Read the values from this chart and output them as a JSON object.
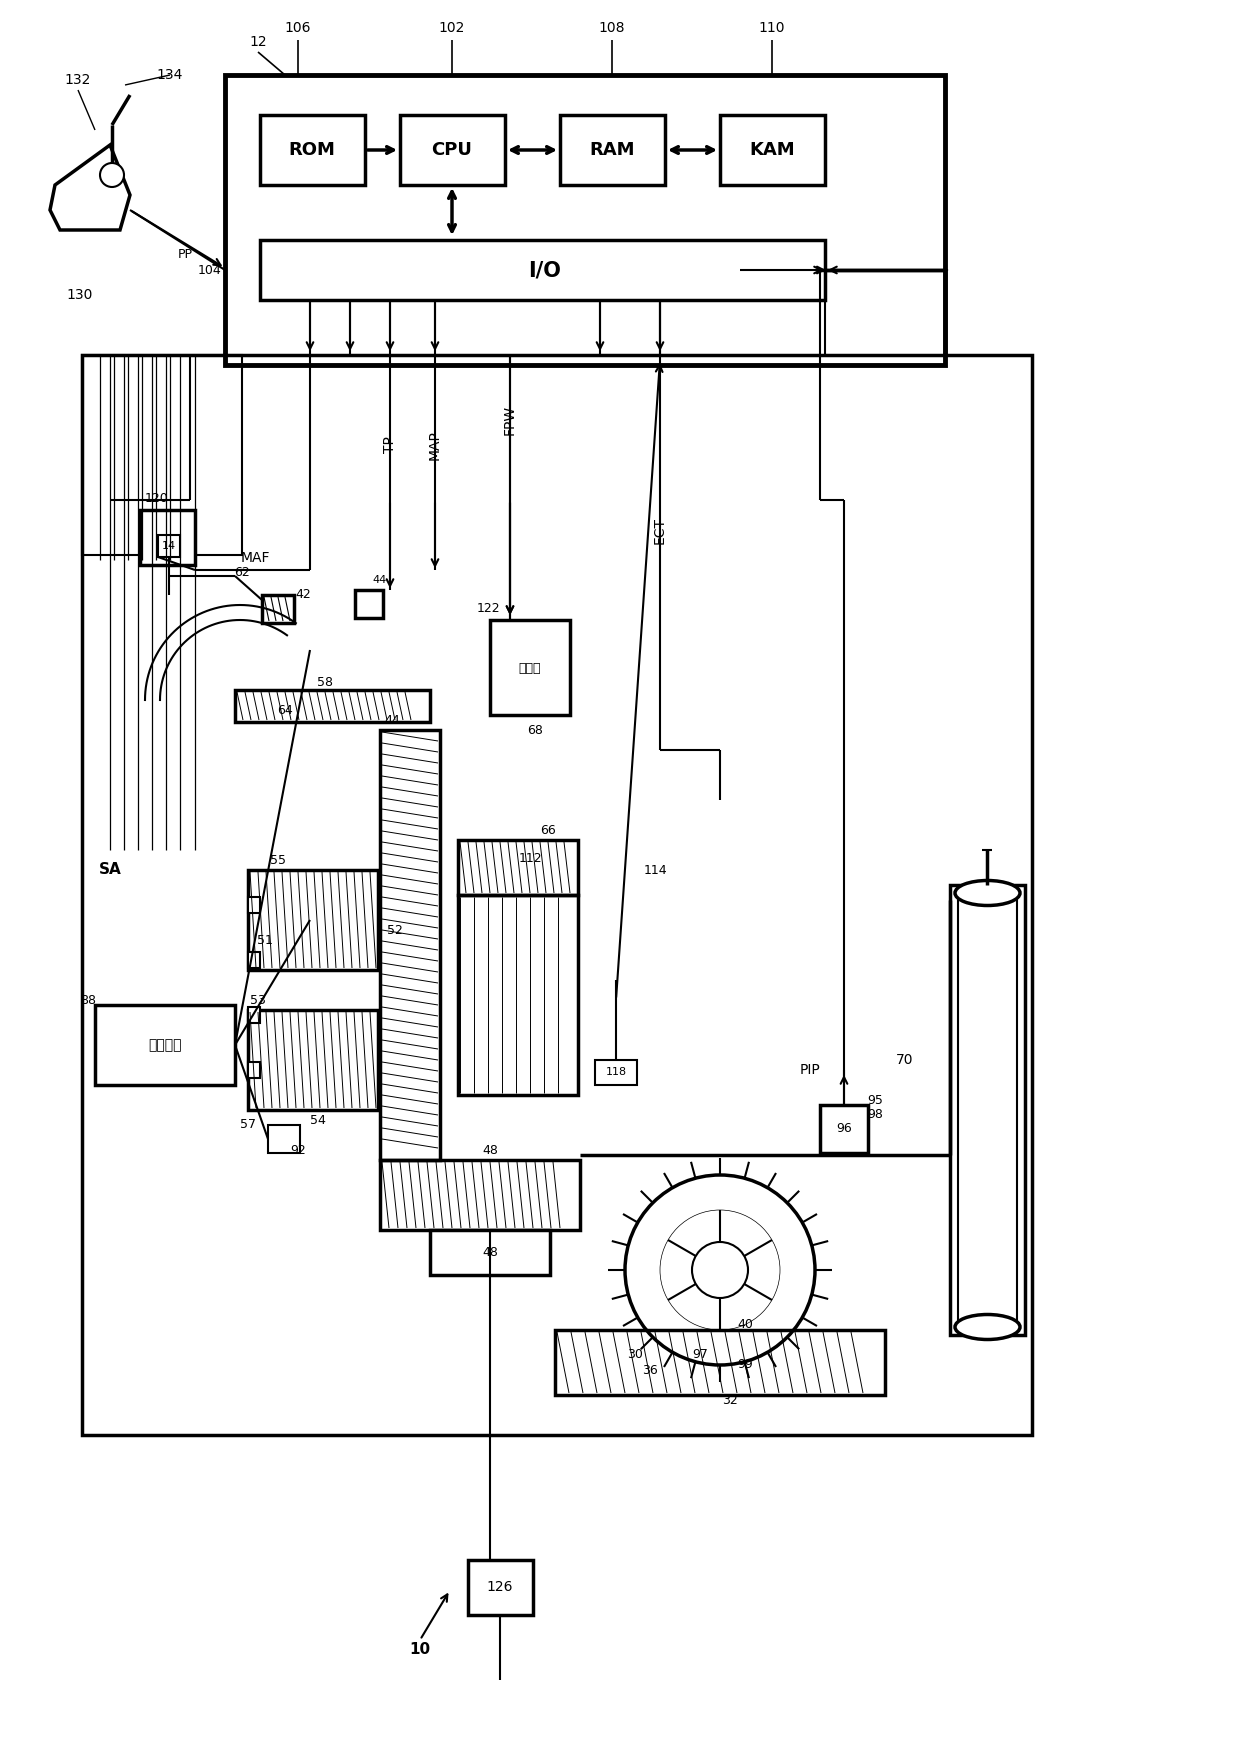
{
  "bg_color": "#ffffff",
  "labels": {
    "ROM": "ROM",
    "CPU": "CPU",
    "RAM": "RAM",
    "KAM": "KAM",
    "IO": "I/O",
    "MAF": "MAF",
    "TP": "TP",
    "MAP": "MAP",
    "FPW": "FPW",
    "ECT": "ECT",
    "SA": "SA",
    "PIP": "PIP",
    "ignition": "点火系统",
    "driver_box": "驱动器"
  }
}
